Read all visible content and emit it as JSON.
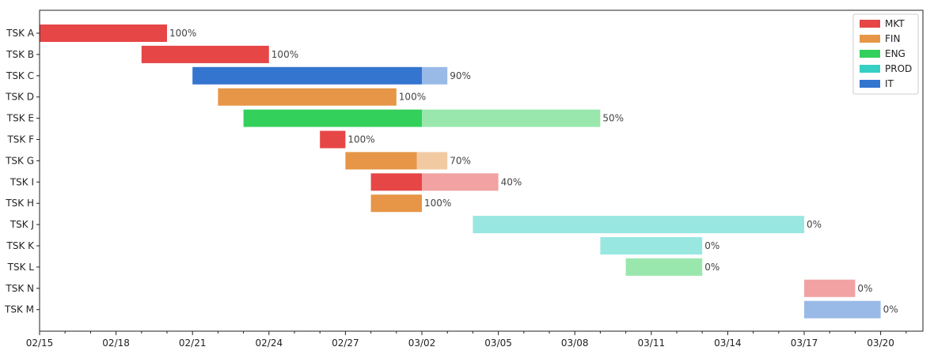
{
  "chart_data": {
    "type": "gantt",
    "title": "",
    "xlabel": "",
    "ylabel": "",
    "x_tick_labels": [
      "02/15",
      "02/18",
      "02/21",
      "02/24",
      "02/27",
      "03/02",
      "03/05",
      "03/08",
      "03/11",
      "03/14",
      "03/17",
      "03/20"
    ],
    "x_range_days": [
      0,
      34.8
    ],
    "x_tick_step_days": 3,
    "legend_position": "top-right",
    "legend": [
      {
        "name": "MKT",
        "color": "#e64646"
      },
      {
        "name": "FIN",
        "color": "#e69646"
      },
      {
        "name": "ENG",
        "color": "#34d05c"
      },
      {
        "name": "PROD",
        "color": "#34d0c3"
      },
      {
        "name": "IT",
        "color": "#3475d0"
      }
    ],
    "status_day": 15,
    "tasks": [
      {
        "task": "TSK A",
        "dept": "MKT",
        "start": 0,
        "end": 5,
        "completion": 100,
        "label": "100%"
      },
      {
        "task": "TSK B",
        "dept": "MKT",
        "start": 4,
        "end": 9,
        "completion": 100,
        "label": "100%"
      },
      {
        "task": "TSK C",
        "dept": "IT",
        "start": 6,
        "end": 16,
        "completion": 90,
        "label": "90%"
      },
      {
        "task": "TSK D",
        "dept": "FIN",
        "start": 7,
        "end": 14,
        "completion": 100,
        "label": "100%"
      },
      {
        "task": "TSK E",
        "dept": "ENG",
        "start": 8,
        "end": 22,
        "completion": 50,
        "label": "50%"
      },
      {
        "task": "TSK F",
        "dept": "MKT",
        "start": 11,
        "end": 12,
        "completion": 100,
        "label": "100%"
      },
      {
        "task": "TSK G",
        "dept": "FIN",
        "start": 12,
        "end": 16,
        "completion": 70,
        "label": "70%"
      },
      {
        "task": "TSK I",
        "dept": "MKT",
        "start": 13,
        "end": 18,
        "completion": 40,
        "label": "40%"
      },
      {
        "task": "TSK H",
        "dept": "FIN",
        "start": 13,
        "end": 15,
        "completion": 100,
        "label": "100%"
      },
      {
        "task": "TSK J",
        "dept": "PROD",
        "start": 17,
        "end": 30,
        "completion": 0,
        "label": "0%"
      },
      {
        "task": "TSK K",
        "dept": "PROD",
        "start": 22,
        "end": 26,
        "completion": 0,
        "label": "0%"
      },
      {
        "task": "TSK L",
        "dept": "ENG",
        "start": 23,
        "end": 26,
        "completion": 0,
        "label": "0%"
      },
      {
        "task": "TSK N",
        "dept": "MKT",
        "start": 30,
        "end": 32,
        "completion": 0,
        "label": "0%"
      },
      {
        "task": "TSK M",
        "dept": "IT",
        "start": 30,
        "end": 33,
        "completion": 0,
        "label": "0%"
      }
    ]
  }
}
